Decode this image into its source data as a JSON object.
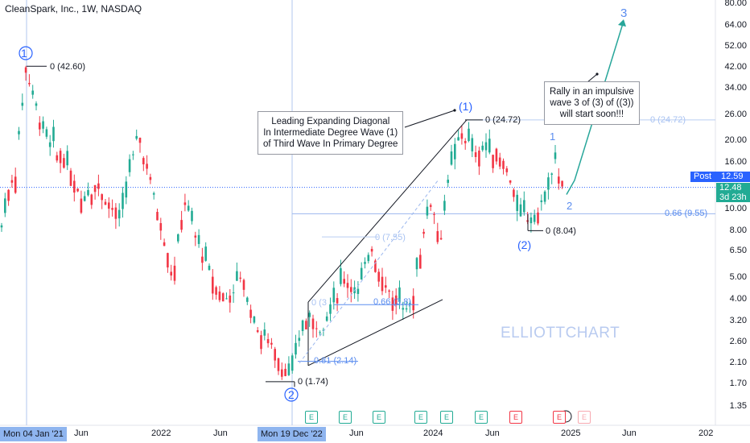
{
  "header": {
    "title": "CleanSpark, Inc., 1W, NASDAQ"
  },
  "price_axis": {
    "ticks": [
      "80.00",
      "64.00",
      "52.00",
      "42.00",
      "34.00",
      "26.00",
      "20.00",
      "16.00",
      "12.59",
      "12.48",
      "10.00",
      "8.00",
      "6.50",
      "5.00",
      "4.00",
      "3.20",
      "2.60",
      "2.10",
      "1.70",
      "1.35"
    ],
    "post_label": "Post",
    "post_price": "12.59",
    "last_price": "12.48",
    "countdown": "3d 23h"
  },
  "time_axis": {
    "labels": [
      "Mon 04 Jan '21",
      "Jun",
      "2022",
      "Jun",
      "Mon 19 Dec '22",
      "Jun",
      "2024",
      "Jun",
      "2025",
      "Jun",
      "202"
    ]
  },
  "annotations": {
    "diagonal_note": [
      "Leading Expanding Diagonal",
      "In Intermediate Degree Wave (1)",
      "of Third Wave In Primary Degree"
    ],
    "rally_note": [
      "Rally in an impulsive",
      "wave 3 of (3) of ((3))",
      "will start soon!!!"
    ]
  },
  "wave_labels": {
    "primary_1": "1",
    "primary_2": "2",
    "intermediate_1": "(1)",
    "intermediate_2": "(2)",
    "minor_1": "1",
    "minor_2": "2",
    "minor_3": "3"
  },
  "levels": {
    "top": "0 (42.60)",
    "bottom": "0 (1.74)",
    "peak": "0 (24.72)",
    "peak_right": "0 (24.72)",
    "retr": "0.66 (9.55)",
    "low2": "0 (8.04)",
    "fib_a": "0 (7.55)",
    "fib_b": "0.66 (3.8)",
    "fib_c": "0.81 (2.14)",
    "fib_d": "0 (3"
  },
  "earnings": {
    "label": "E"
  },
  "watermark": "ELLIOTTCHART",
  "colors": {
    "up": "#22ab94",
    "down": "#f23645",
    "line": "#2962ff",
    "projection": "#27a69a",
    "grid": "#e0e3eb"
  },
  "chart_data": {
    "type": "candlestick",
    "title": "CleanSpark, Inc., 1W, NASDAQ",
    "y_scale": "log",
    "ylim": [
      1.2,
      90
    ],
    "key_points": [
      {
        "date": "2021-02",
        "value": 42.6,
        "label": "1"
      },
      {
        "date": "2022-12",
        "value": 1.74,
        "label": "2"
      },
      {
        "date": "2024-03",
        "value": 24.72,
        "label": "(1)"
      },
      {
        "date": "2024-08",
        "value": 8.04,
        "label": "(2)"
      },
      {
        "date": "2024-11",
        "value": 18.0,
        "label": "1"
      },
      {
        "date": "2024-12",
        "value": 11.5,
        "label": "2"
      }
    ],
    "fib_levels": [
      {
        "name": "0.66",
        "value": 9.55
      }
    ],
    "last_price": 12.48,
    "post_price": 12.59
  }
}
